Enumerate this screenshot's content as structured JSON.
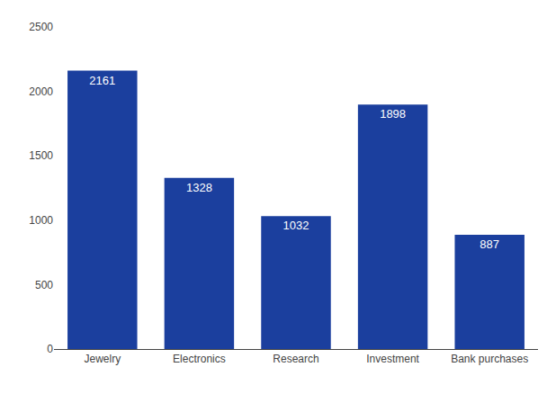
{
  "chart_data": {
    "type": "bar",
    "categories": [
      "Jewelry",
      "Electronics",
      "Research",
      "Investment",
      "Bank purchases"
    ],
    "values": [
      2161,
      1328,
      1032,
      1898,
      887
    ],
    "color": "#1b3f9e",
    "ylim": [
      0,
      2500
    ],
    "yticks": [
      0,
      500,
      1000,
      1500,
      2000,
      2500
    ],
    "grid": false,
    "data_labels": true
  }
}
